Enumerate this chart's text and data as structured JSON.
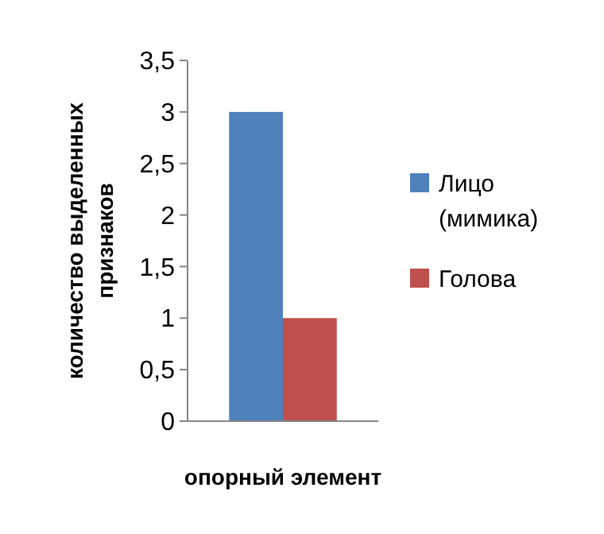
{
  "chart_data": {
    "type": "bar",
    "xlabel": "опорный элемент",
    "ylabel": "количество выделенных признаков",
    "categories": [
      null
    ],
    "series": [
      {
        "name": "Лицо (мимика)",
        "color": "#4f81bd",
        "values": [
          3
        ]
      },
      {
        "name": "Голова",
        "color": "#c0504d",
        "values": [
          1
        ]
      }
    ],
    "ylim": [
      0,
      3.5
    ],
    "yticks": [
      0,
      {
        "value": 0.5,
        "label": "0,5"
      },
      1,
      {
        "value": 1.5,
        "label": "1,5"
      },
      2,
      {
        "value": 2.5,
        "label": "2,5"
      },
      3,
      {
        "value": 3.5,
        "label": "3,5"
      }
    ],
    "grid": false,
    "legend": "right"
  }
}
